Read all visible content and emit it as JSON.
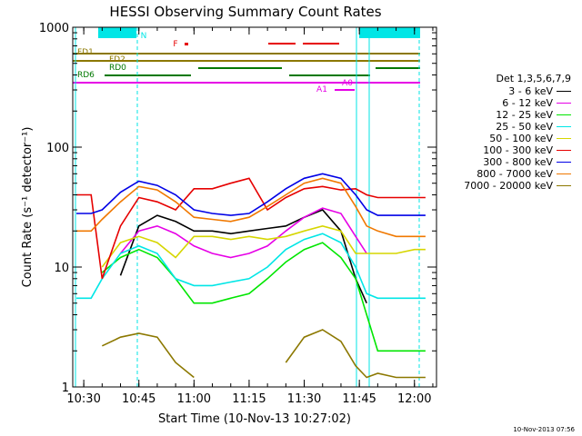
{
  "chart_data": {
    "type": "line",
    "title": "HESSI Observing Summary Count Rates",
    "xlabel": "Start Time (10-Nov-13 10:27:02)",
    "ylabel": "Count Rate (s⁻¹ detector⁻¹)",
    "yscale": "log",
    "ylim": [
      1,
      1000
    ],
    "xlim": [
      "10:27",
      "12:06"
    ],
    "x_ticks": [
      "10:30",
      "10:45",
      "11:00",
      "11:15",
      "11:30",
      "11:45",
      "12:00"
    ],
    "y_ticks": [
      "1",
      "10",
      "100",
      "1000"
    ],
    "grid": false,
    "legend": {
      "position": "right",
      "header": "Det 1,3,5,6,7,9"
    },
    "x": [
      "10:28",
      "10:32",
      "10:35",
      "10:40",
      "10:45",
      "10:50",
      "10:55",
      "11:00",
      "11:05",
      "11:10",
      "11:15",
      "11:20",
      "11:25",
      "11:30",
      "11:35",
      "11:40",
      "11:44",
      "11:47",
      "11:50",
      "11:55",
      "12:00",
      "12:03"
    ],
    "series": [
      {
        "name": "3 - 6 keV",
        "color": "#000000",
        "values": [
          null,
          null,
          null,
          8.5,
          22,
          27,
          24,
          20,
          20,
          19,
          20,
          21,
          22,
          26,
          30,
          20,
          8,
          5,
          null,
          null,
          null,
          null
        ]
      },
      {
        "name": "6 - 12 keV",
        "color": "#e600e6",
        "values": [
          null,
          null,
          null,
          13,
          20,
          22,
          19,
          15,
          13,
          12,
          13,
          15,
          20,
          26,
          31,
          28,
          18,
          13,
          null,
          null,
          null,
          null
        ]
      },
      {
        "name": "12 - 25 keV",
        "color": "#00e600",
        "values": [
          null,
          null,
          9,
          12,
          14,
          12,
          8,
          5,
          5,
          5.5,
          6,
          8,
          11,
          14,
          16,
          12,
          8,
          4,
          2,
          2,
          2,
          2
        ]
      },
      {
        "name": "25 - 50 keV",
        "color": "#00e6e6",
        "values": [
          5.5,
          5.5,
          8,
          13,
          15,
          13,
          8,
          7,
          7,
          7.5,
          8,
          10,
          14,
          17,
          19,
          16,
          10,
          6,
          5.5,
          5.5,
          5.5,
          5.5
        ]
      },
      {
        "name": "50 - 100 keV",
        "color": "#d6d600",
        "values": [
          null,
          null,
          10,
          16,
          18,
          16,
          12,
          18,
          18,
          17,
          18,
          17,
          18,
          20,
          22,
          20,
          13,
          13,
          13,
          13,
          14,
          14
        ]
      },
      {
        "name": "100 - 300 keV",
        "color": "#e60000",
        "values": [
          40,
          40,
          8,
          22,
          38,
          35,
          30,
          45,
          45,
          50,
          55,
          30,
          38,
          45,
          47,
          44,
          45,
          40,
          38,
          38,
          38,
          38
        ]
      },
      {
        "name": "300 - 800 keV",
        "color": "#0000e6",
        "values": [
          28,
          28,
          30,
          42,
          52,
          48,
          40,
          30,
          28,
          27,
          28,
          35,
          45,
          55,
          60,
          55,
          40,
          30,
          27,
          27,
          27,
          27
        ]
      },
      {
        "name": "800 - 7000 keV",
        "color": "#f07800",
        "values": [
          20,
          20,
          25,
          35,
          47,
          44,
          35,
          26,
          25,
          24,
          26,
          32,
          40,
          50,
          55,
          50,
          32,
          22,
          20,
          18,
          18,
          18
        ]
      },
      {
        "name": "7000 - 20000 keV",
        "color": "#8c7800",
        "values": [
          null,
          null,
          2.2,
          2.6,
          2.8,
          2.6,
          1.6,
          1.2,
          null,
          null,
          null,
          null,
          1.6,
          2.6,
          3,
          2.4,
          1.5,
          1.2,
          1.3,
          1.2,
          1.2,
          1.2
        ]
      }
    ],
    "annotations": [
      {
        "label": "N",
        "color": "#00e6e6"
      },
      {
        "label": "F",
        "color": "#e60000"
      },
      {
        "label": "FD1",
        "color": "#8c7800"
      },
      {
        "label": "FD2",
        "color": "#8c7800"
      },
      {
        "label": "RD0",
        "color": "#007800"
      },
      {
        "label": "RD6",
        "color": "#007800"
      },
      {
        "label": "A0",
        "color": "#e600e6"
      },
      {
        "label": "A1",
        "color": "#e600e6"
      }
    ],
    "footer": "10-Nov-2013 07:56"
  }
}
